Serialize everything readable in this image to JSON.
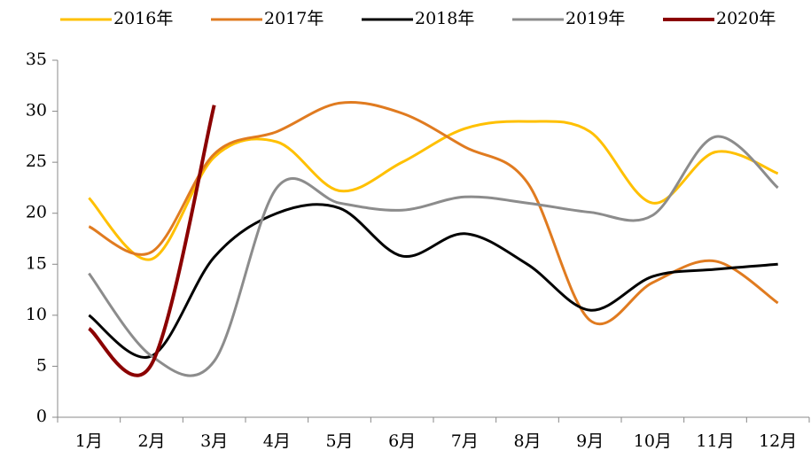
{
  "chart_data": {
    "type": "line",
    "categories": [
      "1月",
      "2月",
      "3月",
      "4月",
      "5月",
      "6月",
      "7月",
      "8月",
      "9月",
      "10月",
      "11月",
      "12月"
    ],
    "series": [
      {
        "name": "2016年",
        "color": "#FFC000",
        "values": [
          21.5,
          15.5,
          25.5,
          27,
          22.2,
          25,
          28.3,
          29,
          28,
          21,
          26,
          23.9
        ]
      },
      {
        "name": "2017年",
        "color": "#E07B20",
        "values": [
          18.7,
          16.2,
          25.8,
          28,
          30.8,
          29.8,
          26.5,
          23,
          9.5,
          13.2,
          15.3,
          11.2
        ]
      },
      {
        "name": "2018年",
        "color": "#000000",
        "values": [
          10,
          6,
          15.7,
          20,
          20.5,
          15.8,
          18,
          15,
          10.5,
          13.8,
          14.5,
          15
        ]
      },
      {
        "name": "2019年",
        "color": "#8C8C8C",
        "values": [
          14.1,
          6,
          5.5,
          22.5,
          21,
          20.3,
          21.6,
          21,
          20.1,
          19.8,
          27.5,
          22.5
        ]
      },
      {
        "name": "2020年",
        "color": "#8B0000",
        "values": [
          8.7,
          5.2,
          30.6,
          null,
          null,
          null,
          null,
          null,
          null,
          null,
          null,
          null
        ]
      }
    ],
    "ylim": [
      0,
      35
    ],
    "yticks": [
      0,
      5,
      10,
      15,
      20,
      25,
      30,
      35
    ],
    "legend": "top"
  }
}
